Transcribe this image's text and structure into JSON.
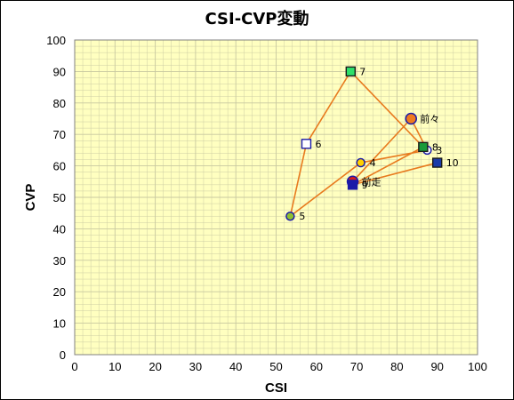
{
  "chart_data": {
    "type": "scatter",
    "title": "CSI-CVP変動",
    "xlabel": "CSI",
    "ylabel": "CVP",
    "xlim": [
      0,
      100
    ],
    "ylim": [
      0,
      100
    ],
    "xticks": [
      "0",
      "10",
      "20",
      "30",
      "40",
      "50",
      "60",
      "70",
      "80",
      "90",
      "100"
    ],
    "yticks": [
      "0",
      "10",
      "20",
      "30",
      "40",
      "50",
      "60",
      "70",
      "80",
      "90",
      "100"
    ],
    "grid": true,
    "plot_bg": "#ffffc0",
    "grid_color": "#c8c8a0",
    "line_color": "#e87a1e",
    "points": [
      {
        "label": "前走",
        "x": 69,
        "y": 55,
        "marker": "circle",
        "fill": "#d81b1b",
        "stroke": "#1a1aa8"
      },
      {
        "label": "前々",
        "x": 83.5,
        "y": 75,
        "marker": "circle",
        "fill": "#f07a1e",
        "stroke": "#1a1aa8"
      },
      {
        "label": "3",
        "x": 87.5,
        "y": 65,
        "marker": "circle",
        "fill": "#ffffff",
        "stroke": "#1a1aa8"
      },
      {
        "label": "4",
        "x": 71,
        "y": 61,
        "marker": "circle",
        "fill": "#ffd000",
        "stroke": "#1a1aa8"
      },
      {
        "label": "5",
        "x": 53.5,
        "y": 44,
        "marker": "circle",
        "fill": "#90c030",
        "stroke": "#1a1aa8"
      },
      {
        "label": "6",
        "x": 57.5,
        "y": 67,
        "marker": "square",
        "fill": "#ffffff",
        "stroke": "#1a1aa8"
      },
      {
        "label": "7",
        "x": 68.5,
        "y": 90,
        "marker": "square",
        "fill": "#2ee06a",
        "stroke": "#1a1a1a"
      },
      {
        "label": "8",
        "x": 86.5,
        "y": 66,
        "marker": "square",
        "fill": "#1a9a3a",
        "stroke": "#1a1a1a"
      },
      {
        "label": "9",
        "x": 69,
        "y": 54,
        "marker": "square",
        "fill": "#1a1aa8",
        "stroke": "#1a1aa8"
      },
      {
        "label": "10",
        "x": 90,
        "y": 61,
        "marker": "square",
        "fill": "#1a3aa8",
        "stroke": "#1a1a1a"
      }
    ]
  }
}
